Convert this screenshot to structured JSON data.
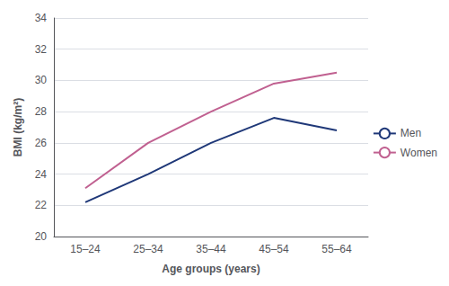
{
  "chart_data": {
    "type": "line",
    "xlabel": "Age groups (years)",
    "ylabel": "BMI (kg/m²)",
    "categories": [
      "15–24",
      "25–34",
      "35–44",
      "45–54",
      "55–64"
    ],
    "series": [
      {
        "name": "Men",
        "color": "#1f3878",
        "values": [
          22.2,
          24.0,
          26.0,
          27.6,
          26.8
        ]
      },
      {
        "name": "Women",
        "color": "#c06090",
        "values": [
          23.1,
          26.0,
          28.0,
          29.8,
          30.5
        ]
      }
    ],
    "ylim": [
      20,
      34
    ],
    "yticks": [
      20,
      22,
      24,
      26,
      28,
      30,
      32,
      34
    ],
    "grid": true,
    "legend": "right"
  }
}
